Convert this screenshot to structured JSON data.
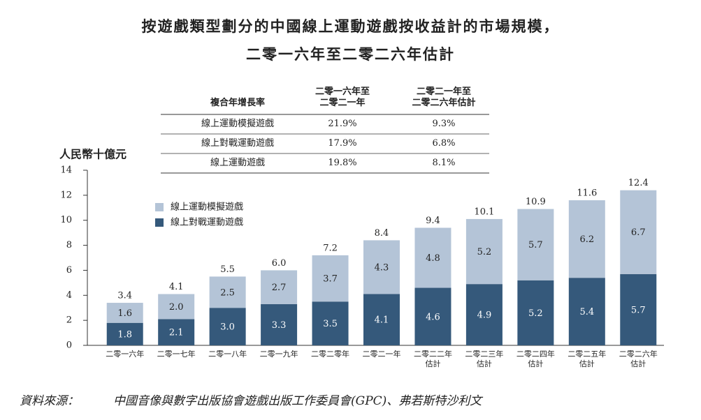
{
  "title": [
    "按遊戲類型劃分的中國線上運動遊戲按收益計的市場規模，",
    "二零一六年至二零二六年估計"
  ],
  "cagr_table": {
    "header": [
      "複合年增長率",
      "二零一六年至\n二零二一年",
      "二零二一年至\n二零二六年估計"
    ],
    "rows": [
      [
        "線上運動模擬遊戲",
        "21.9%",
        "9.3%"
      ],
      [
        "線上對戰運動遊戲",
        "17.9%",
        "6.8%"
      ],
      [
        "線上運動遊戲",
        "19.8%",
        "8.1%"
      ]
    ]
  },
  "chart_data": {
    "type": "stacked_bar",
    "y_label": "人民幣十億元",
    "categories": [
      "二零一六年",
      "二零一七年",
      "二零一八年",
      "二零一九年",
      "二零二零年",
      "二零二一年",
      "二零二二年\n估計",
      "二零二三年\n估計",
      "二零二四年\n估計",
      "二零二五年\n估計",
      "二零二六年\n估計"
    ],
    "series": [
      {
        "name": "線上對戰運動遊戲",
        "color": "#35597b",
        "values": [
          1.8,
          2.1,
          3.0,
          3.3,
          3.5,
          4.1,
          4.6,
          4.9,
          5.2,
          5.4,
          5.7
        ],
        "value_labels": [
          "1.8",
          "2.1",
          "3.0",
          "3.3",
          "3.5",
          "4.1",
          "4.6",
          "4.9",
          "5.2",
          "5.4",
          "5.7"
        ]
      },
      {
        "name": "線上運動模擬遊戲",
        "color": "#b4c4d7",
        "values": [
          1.6,
          2.0,
          2.5,
          2.7,
          3.7,
          4.3,
          4.8,
          5.2,
          5.7,
          6.2,
          6.7
        ],
        "value_labels": [
          "1.6",
          "2.0",
          "2.5",
          "2.7",
          "3.7",
          "4.3",
          "4.8",
          "5.2",
          "5.7",
          "6.2",
          "6.7"
        ]
      }
    ],
    "totals": {
      "values": [
        3.4,
        4.1,
        5.5,
        6.0,
        7.2,
        8.4,
        9.4,
        10.1,
        10.9,
        11.6,
        12.4
      ],
      "value_labels": [
        "3.4",
        "4.1",
        "5.5",
        "6.0",
        "7.2",
        "8.4",
        "9.4",
        "10.1",
        "10.9",
        "11.6",
        "12.4"
      ]
    },
    "ylim": [
      0,
      14
    ],
    "yticks": [
      0,
      2,
      4,
      6,
      8,
      10,
      12,
      14
    ]
  },
  "source": [
    "資料來源：",
    "中國音像與數字出版協會遊戲出版工作委員會(GPC)、弗若斯特沙利文"
  ]
}
